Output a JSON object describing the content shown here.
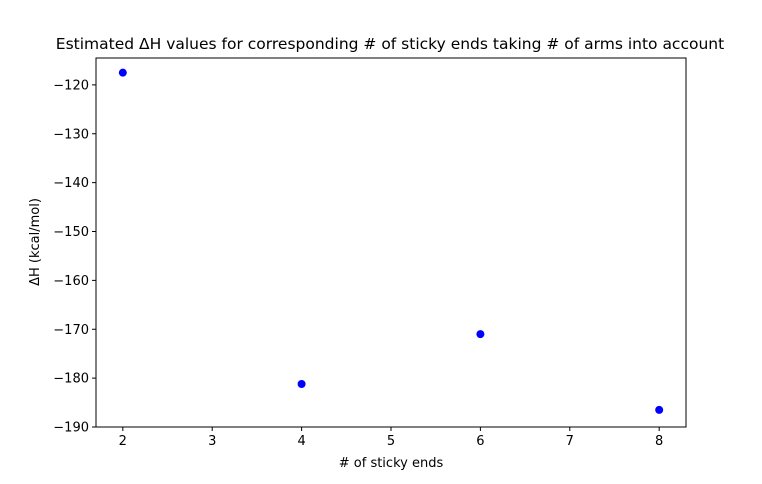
{
  "chart_data": {
    "type": "scatter",
    "title": "Estimated ΔH values for corresponding # of sticky ends taking # of arms into account",
    "xlabel": "# of sticky ends",
    "ylabel": "ΔH (kcal/mol)",
    "x": [
      2,
      4,
      6,
      8
    ],
    "y": [
      -117.5,
      -181.2,
      -171.0,
      -186.5
    ],
    "xlim": [
      1.7,
      8.3
    ],
    "ylim": [
      -190,
      -114.5
    ],
    "xticks": [
      2,
      3,
      4,
      5,
      6,
      7,
      8
    ],
    "yticks": [
      -120,
      -130,
      -140,
      -150,
      -160,
      -170,
      -180,
      -190
    ],
    "xtick_labels": [
      "2",
      "3",
      "4",
      "5",
      "6",
      "7",
      "8"
    ],
    "ytick_labels": [
      "−120",
      "−130",
      "−140",
      "−150",
      "−160",
      "−170",
      "−180",
      "−190"
    ],
    "marker_color": "#0000ff",
    "grid": false
  }
}
